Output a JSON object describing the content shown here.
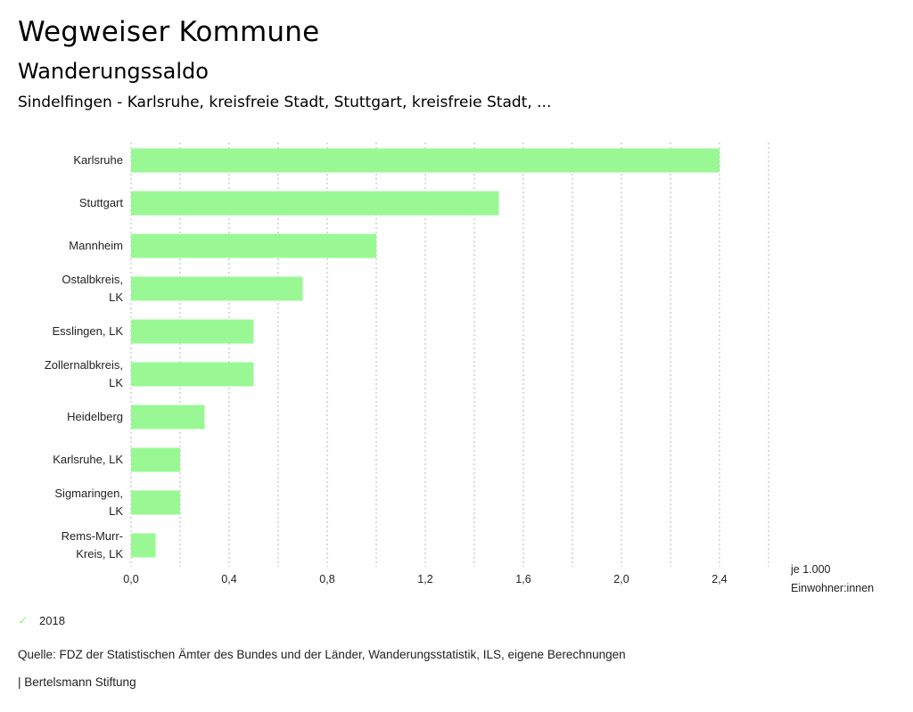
{
  "header": {
    "title": "Wegweiser Kommune",
    "subtitle": "Wanderungssaldo",
    "description": "Sindelfingen - Karlsruhe, kreisfreie Stadt, Stuttgart, kreisfreie Stadt, ..."
  },
  "chart_data": {
    "type": "bar",
    "orientation": "horizontal",
    "title": "Wanderungssaldo",
    "categories": [
      [
        "Karlsruhe"
      ],
      [
        "Stuttgart"
      ],
      [
        "Mannheim"
      ],
      [
        "Ostalbkreis,",
        "LK"
      ],
      [
        "Esslingen, LK"
      ],
      [
        "Zollernalbkreis,",
        "LK"
      ],
      [
        "Heidelberg"
      ],
      [
        "Karlsruhe, LK"
      ],
      [
        "Sigmaringen,",
        "LK"
      ],
      [
        "Rems-Murr-",
        "Kreis, LK"
      ]
    ],
    "series": [
      {
        "name": "2018",
        "color": "#99f893",
        "values": [
          2.4,
          1.5,
          1.0,
          0.7,
          0.5,
          0.5,
          0.3,
          0.2,
          0.2,
          0.1
        ]
      }
    ],
    "xlim": [
      0,
      2.6
    ],
    "xticks": [
      0,
      0.4,
      0.8,
      1.2,
      1.6,
      2.0,
      2.4
    ],
    "xtick_labels": [
      "0,0",
      "0,4",
      "0,8",
      "1,2",
      "1,6",
      "2,0",
      "2,4"
    ],
    "grid_step": 0.2,
    "grid": true,
    "xlabel": [
      "je 1.000",
      "Einwohner:innen"
    ],
    "legend_position": "bottom-left"
  },
  "legend": {
    "items": [
      {
        "label": "2018",
        "icon": "check-icon",
        "color": "#99f893"
      }
    ]
  },
  "footer": {
    "source": "Quelle: FDZ der Statistischen Ämter des Bundes und der Länder, Wanderungsstatistik, ILS, eigene Berechnungen",
    "credit": "| Bertelsmann Stiftung"
  }
}
